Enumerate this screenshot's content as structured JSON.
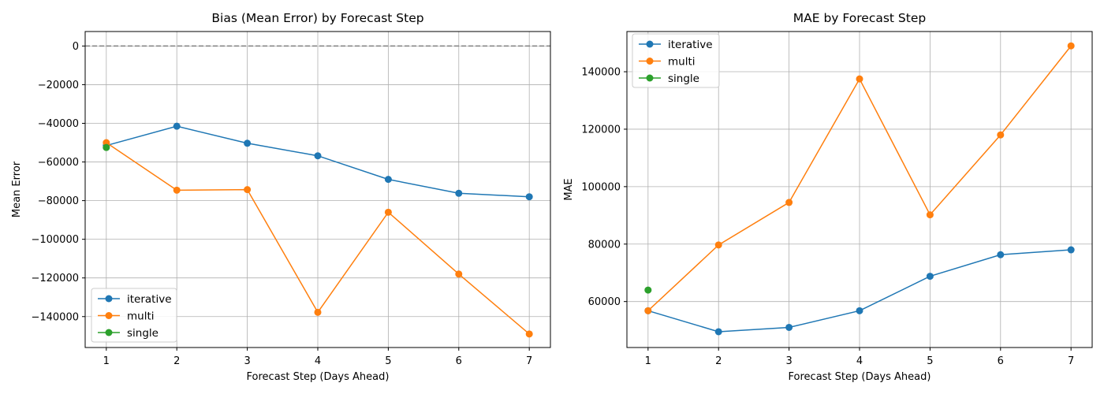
{
  "chart_data": [
    {
      "type": "line",
      "title": "Bias (Mean Error) by Forecast Step",
      "xlabel": "Forecast Step (Days Ahead)",
      "ylabel": "Mean Error",
      "x_ticks": [
        1,
        2,
        3,
        4,
        5,
        6,
        7
      ],
      "y_ticks": [
        0,
        -20000,
        -40000,
        -60000,
        -80000,
        -100000,
        -120000,
        -140000
      ],
      "xlim": [
        0.7,
        7.3
      ],
      "ylim": [
        -156000,
        7500
      ],
      "grid": true,
      "reference_line": {
        "y": 0,
        "style": "dashed",
        "color": "#808080"
      },
      "legend_position": "lower-left",
      "series": [
        {
          "name": "iterative",
          "color": "#1f77b4",
          "x": [
            1,
            2,
            3,
            4,
            5,
            6,
            7
          ],
          "y": [
            -51500,
            -41500,
            -50300,
            -56800,
            -69000,
            -76200,
            -78000
          ]
        },
        {
          "name": "multi",
          "color": "#ff7f0e",
          "x": [
            1,
            2,
            3,
            4,
            5,
            6,
            7
          ],
          "y": [
            -50000,
            -74600,
            -74300,
            -137800,
            -86000,
            -118000,
            -149000
          ]
        },
        {
          "name": "single",
          "color": "#2ca02c",
          "x": [
            1
          ],
          "y": [
            -52500
          ]
        }
      ]
    },
    {
      "type": "line",
      "title": "MAE by Forecast Step",
      "xlabel": "Forecast Step (Days Ahead)",
      "ylabel": "MAE",
      "x_ticks": [
        1,
        2,
        3,
        4,
        5,
        6,
        7
      ],
      "y_ticks": [
        60000,
        80000,
        100000,
        120000,
        140000
      ],
      "xlim": [
        0.7,
        7.3
      ],
      "ylim": [
        44000,
        154000
      ],
      "grid": true,
      "legend_position": "upper-left",
      "series": [
        {
          "name": "iterative",
          "color": "#1f77b4",
          "x": [
            1,
            2,
            3,
            4,
            5,
            6,
            7
          ],
          "y": [
            56800,
            49500,
            51000,
            56800,
            68800,
            76300,
            78000
          ]
        },
        {
          "name": "multi",
          "color": "#ff7f0e",
          "x": [
            1,
            2,
            3,
            4,
            5,
            6,
            7
          ],
          "y": [
            56800,
            79700,
            94500,
            137500,
            90200,
            118000,
            149000
          ]
        },
        {
          "name": "single",
          "color": "#2ca02c",
          "x": [
            1
          ],
          "y": [
            64000
          ]
        }
      ]
    }
  ]
}
